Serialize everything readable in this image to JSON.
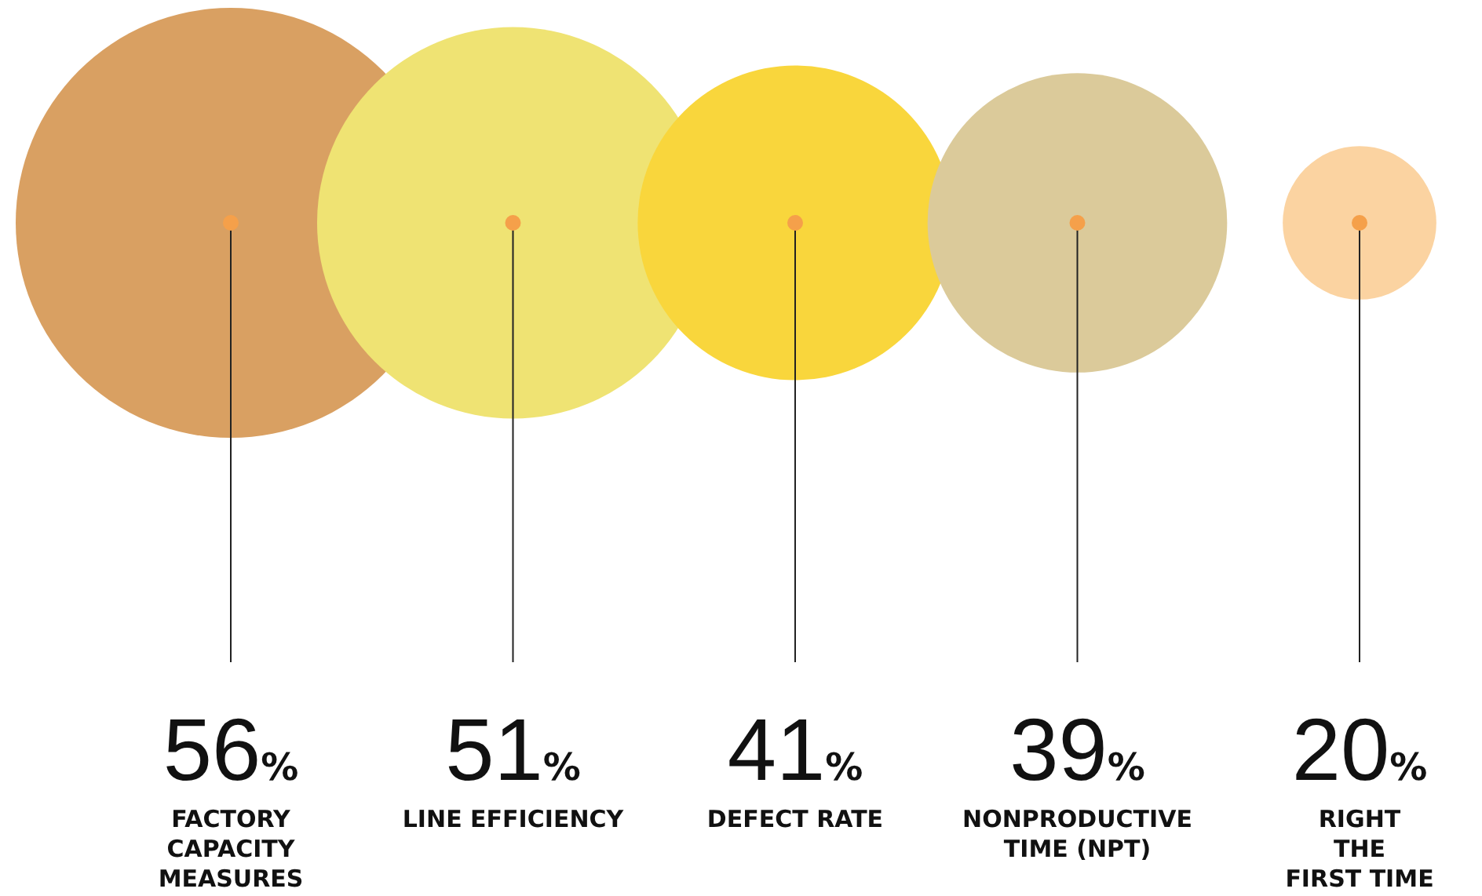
{
  "chart_data": {
    "type": "other",
    "categories": [
      "FACTORY\nCAPACITY\nMEASURES",
      "LINE EFFICIENCY",
      "DEFECT RATE",
      "NONPRODUCTIVE\nTIME (NPT)",
      "RIGHT\nTHE\nFIRST TIME"
    ],
    "values": [
      56,
      51,
      41,
      39,
      20
    ],
    "value_labels": [
      "56%",
      "51%",
      "41%",
      "39%",
      "20%"
    ],
    "colors": [
      "#d9a062",
      "#efe373",
      "#f9d63c",
      "#dbca9a",
      "#fbd3a1"
    ]
  }
}
